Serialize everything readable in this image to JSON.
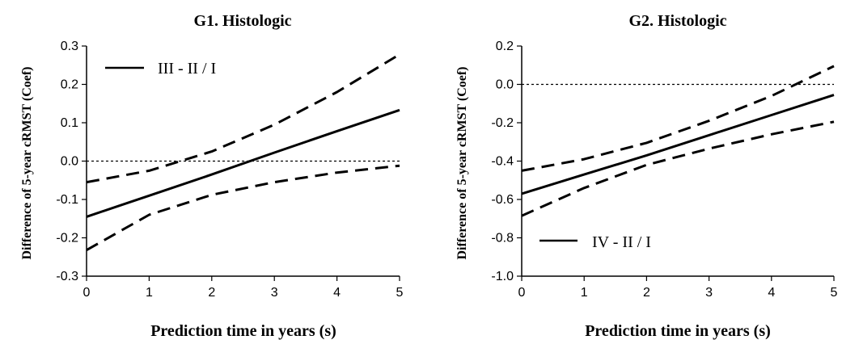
{
  "chart_data": [
    {
      "type": "line",
      "title": "G1. Histologic",
      "xlabel": "Prediction time in years (s)",
      "ylabel": "Difference of 5-year cRMST (Coef)",
      "xlim": [
        0,
        5
      ],
      "ylim": [
        -0.3,
        0.3
      ],
      "xticks": [
        "0",
        "1",
        "2",
        "3",
        "4",
        "5"
      ],
      "yticks": [
        "0.3",
        "0.2",
        "0.1",
        "0.0",
        "-0.1",
        "-0.2",
        "-0.3"
      ],
      "legend_label": "III - II / I",
      "legend_position": "top-left",
      "reference_line": 0.0,
      "series": [
        {
          "name": "III - II / I",
          "style": "solid",
          "x": [
            0,
            1,
            2,
            3,
            4,
            5
          ],
          "y": [
            -0.145,
            -0.09,
            -0.035,
            0.022,
            0.078,
            0.133
          ]
        },
        {
          "style": "dashed",
          "x": [
            0,
            1,
            2,
            3,
            4,
            5
          ],
          "y": [
            -0.055,
            -0.025,
            0.025,
            0.095,
            0.18,
            0.278
          ]
        },
        {
          "style": "dashed",
          "x": [
            0,
            1,
            2,
            3,
            4,
            5
          ],
          "y": [
            -0.232,
            -0.14,
            -0.088,
            -0.055,
            -0.03,
            -0.012
          ]
        }
      ]
    },
    {
      "type": "line",
      "title": "G2. Histologic",
      "xlabel": "Prediction time in years (s)",
      "ylabel": "Difference of 5-year cRMST (Coef)",
      "xlim": [
        0,
        5
      ],
      "ylim": [
        -1.0,
        0.2
      ],
      "xticks": [
        "0",
        "1",
        "2",
        "3",
        "4",
        "5"
      ],
      "yticks": [
        "0.2",
        "0.0",
        "-0.2",
        "-0.4",
        "-0.6",
        "-0.8",
        "-1.0"
      ],
      "legend_label": "IV - II / I",
      "legend_position": "bottom-left",
      "reference_line": 0.0,
      "series": [
        {
          "name": "IV - II / I",
          "style": "solid",
          "x": [
            0,
            1,
            2,
            3,
            4,
            5
          ],
          "y": [
            -0.57,
            -0.47,
            -0.37,
            -0.265,
            -0.16,
            -0.055
          ]
        },
        {
          "style": "dashed",
          "x": [
            0,
            1,
            2,
            3,
            4,
            5
          ],
          "y": [
            -0.45,
            -0.39,
            -0.305,
            -0.19,
            -0.06,
            0.095
          ]
        },
        {
          "style": "dashed",
          "x": [
            0,
            1,
            2,
            3,
            4,
            5
          ],
          "y": [
            -0.685,
            -0.54,
            -0.42,
            -0.335,
            -0.26,
            -0.195
          ]
        }
      ]
    }
  ]
}
